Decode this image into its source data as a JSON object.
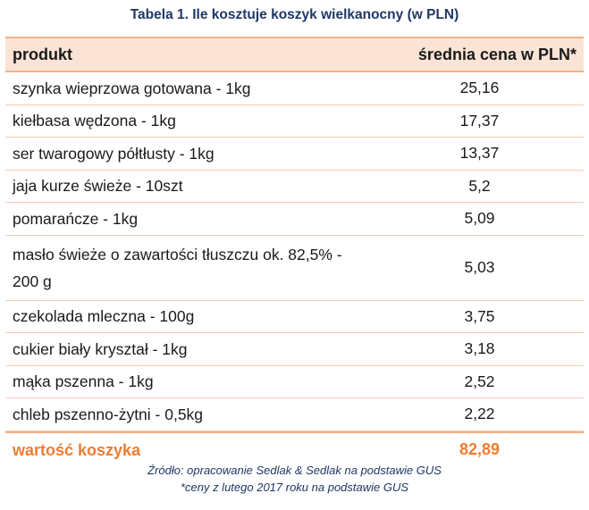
{
  "caption": "Tabela 1. Ile kosztuje koszyk wielkanocny (w PLN)",
  "header": {
    "product": "produkt",
    "price": "średnia cena w PLN*"
  },
  "rows": [
    {
      "product": "szynka wieprzowa gotowana - 1kg",
      "price": "25,16"
    },
    {
      "product": "kiełbasa wędzona - 1kg",
      "price": "17,37"
    },
    {
      "product": "ser twarogowy półtłusty - 1kg",
      "price": "13,37"
    },
    {
      "product": "jaja kurze świeże - 10szt",
      "price": "5,2"
    },
    {
      "product": "pomarańcze - 1kg",
      "price": "5,09"
    },
    {
      "product_line1": "masło świeże o zawartości tłuszczu ok. 82,5% -",
      "product_line2": "200 g",
      "price": "5,03"
    },
    {
      "product": "czekolada mleczna - 100g",
      "price": "3,75"
    },
    {
      "product": "cukier biały kryształ - 1kg",
      "price": "3,18"
    },
    {
      "product": "mąka pszenna - 1kg",
      "price": "2,52"
    },
    {
      "product": "chleb pszenno-żytni - 0,5kg",
      "price": "2,22"
    }
  ],
  "total": {
    "label": "wartość koszyka",
    "value": "82,89"
  },
  "notes": {
    "source": "Źródło: opracowanie Sedlak & Sedlak na podstawie GUS",
    "footnote": "*ceny z lutego 2017 roku na podstawie GUS"
  },
  "colors": {
    "title": "#1f3864",
    "header_bg": "#fbe4d5",
    "border": "#f3b183",
    "accent": "#ed7d31"
  }
}
